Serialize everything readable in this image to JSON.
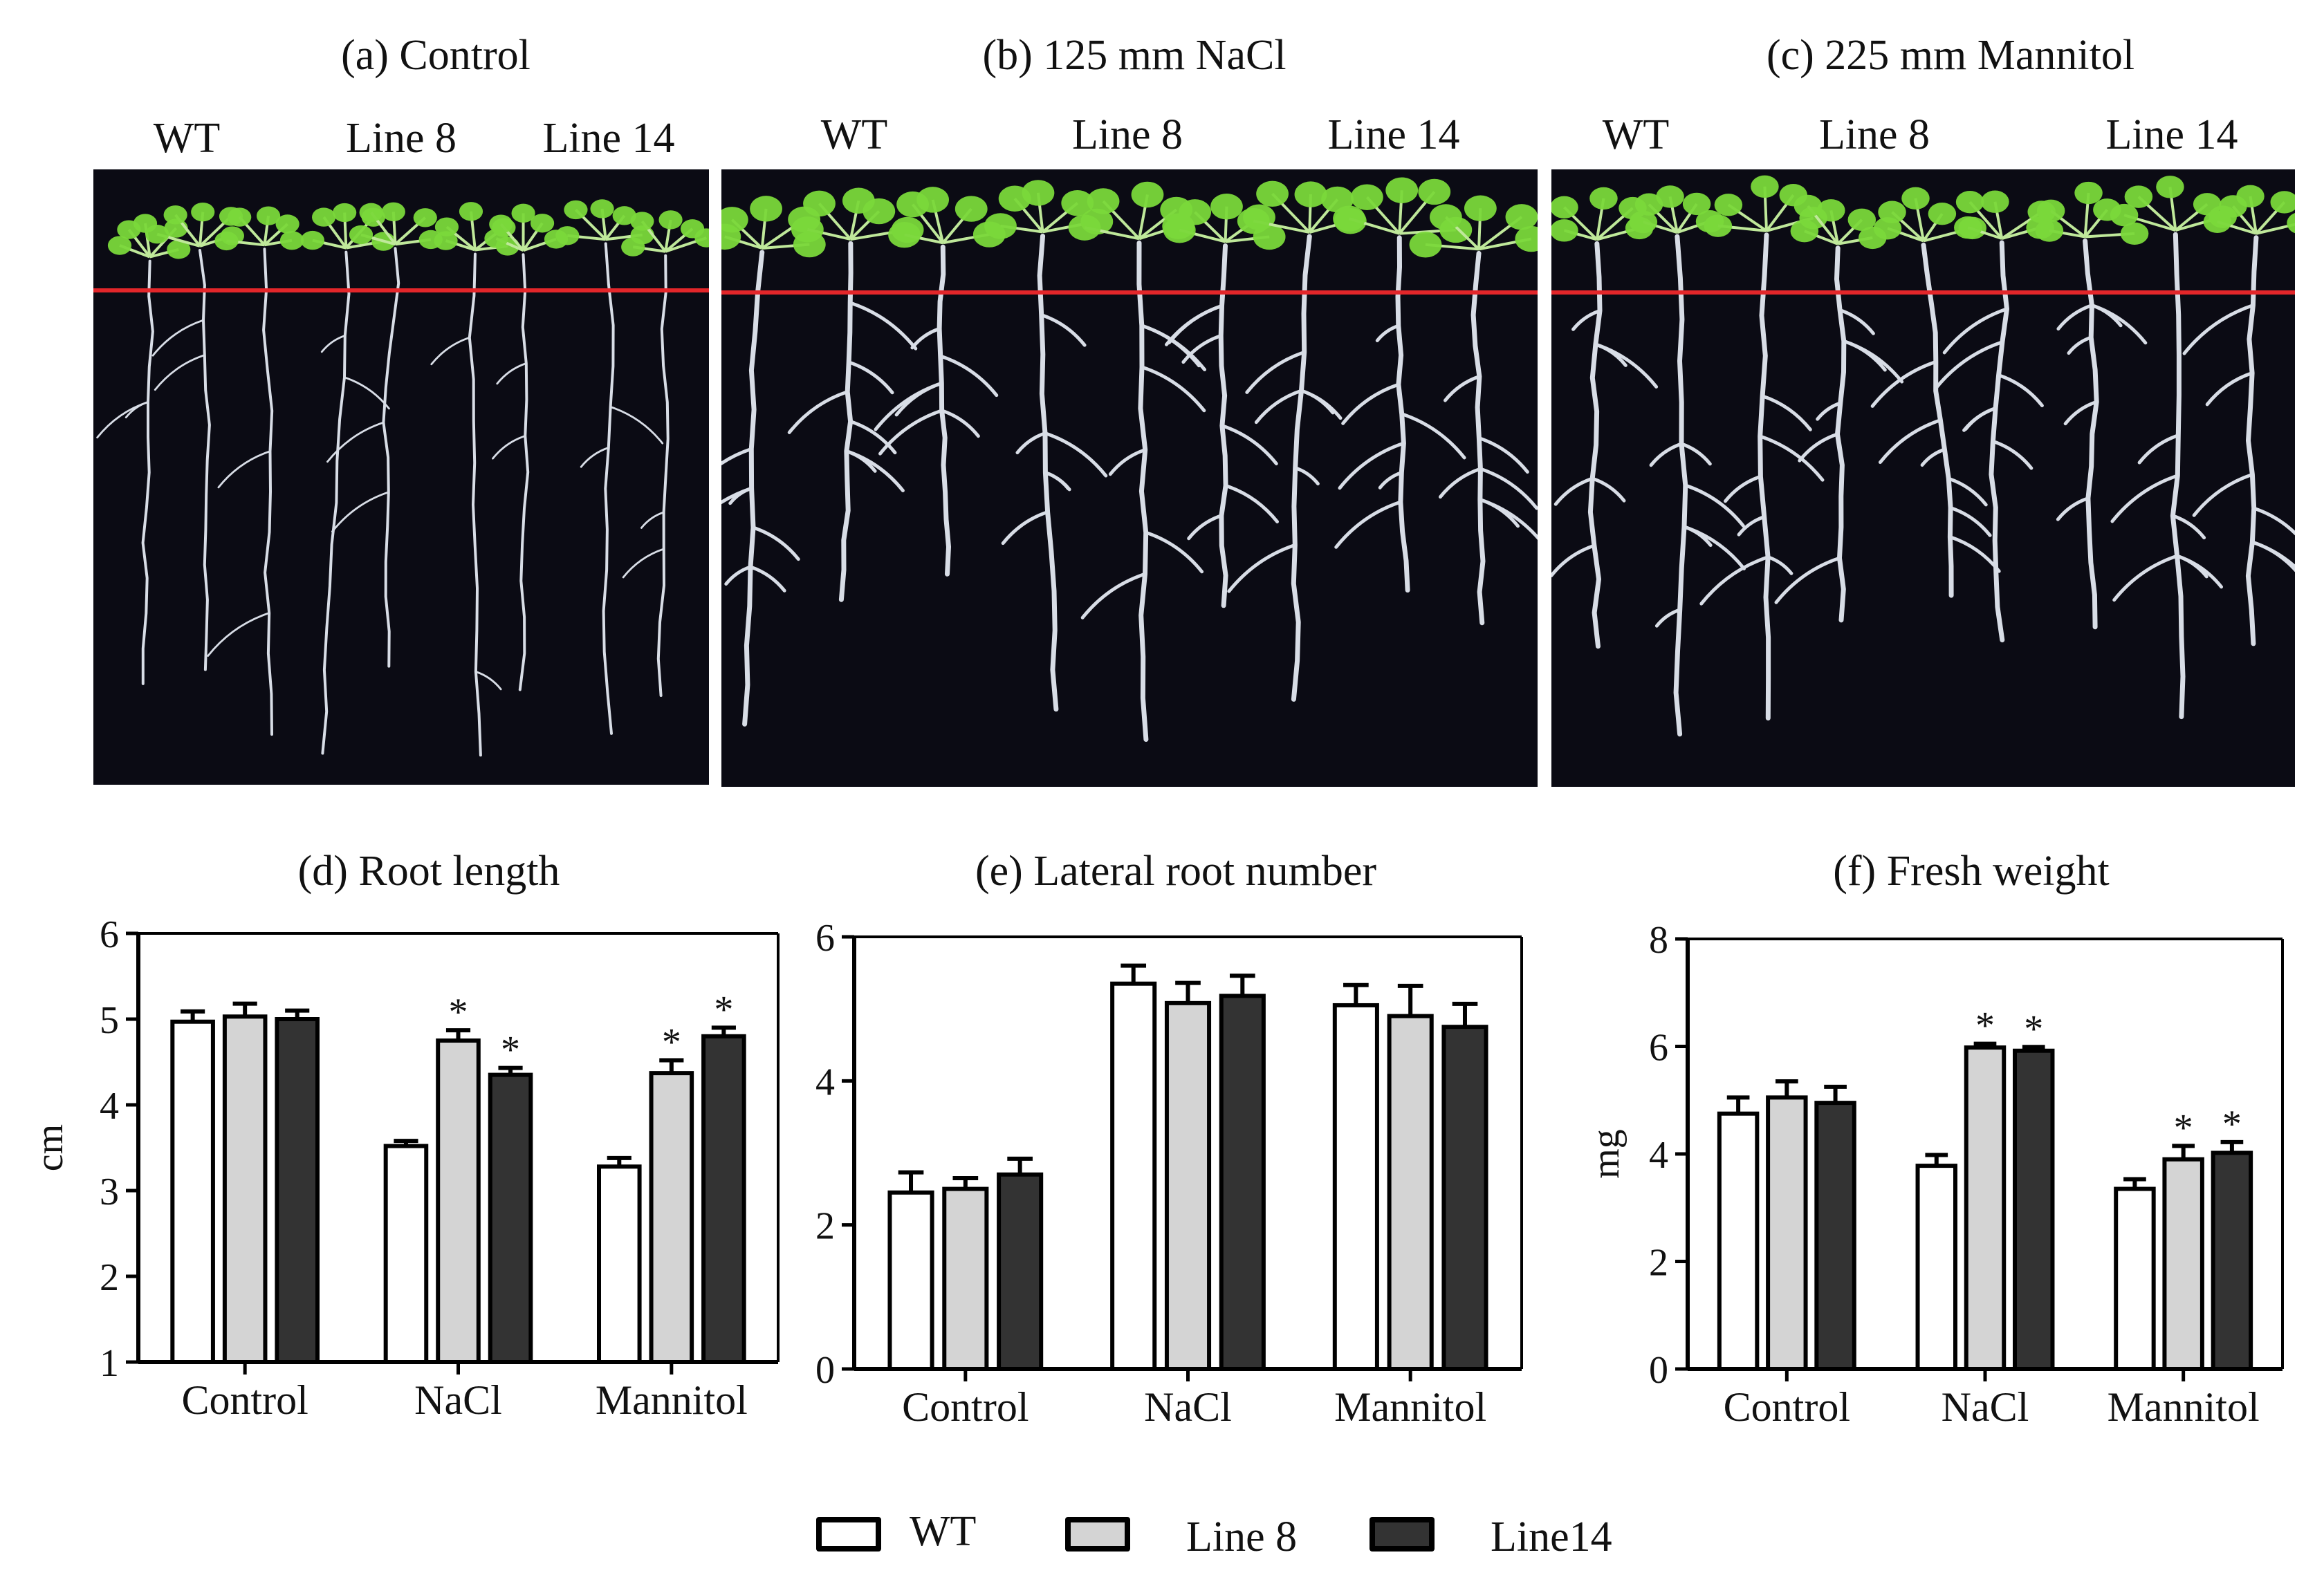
{
  "photos": [
    {
      "title": "(a) Control",
      "labels": [
        "WT",
        "Line 8",
        "Line 14"
      ],
      "roots": "long"
    },
    {
      "title": "(b) 125 mm NaCl",
      "labels": [
        "WT",
        "Line 8",
        "Line 14"
      ],
      "roots": "branched"
    },
    {
      "title": "(c) 225 mm Mannitol",
      "labels": [
        "WT",
        "Line 8",
        "Line 14"
      ],
      "roots": "branched"
    }
  ],
  "colors": {
    "WT": "#ffffff",
    "Line 8": "#d4d4d4",
    "Line14": "#333333",
    "axis": "#000000",
    "marker_line": "#e3262a",
    "leaf": "#7ad83a",
    "root": "#d8dde6"
  },
  "chart_data": [
    {
      "type": "bar",
      "title": "(d) Root length",
      "ylabel": "cm",
      "ylim": [
        1,
        6
      ],
      "yticks": [
        1,
        2,
        3,
        4,
        5,
        6
      ],
      "categories": [
        "Control",
        "NaCl",
        "Mannitol"
      ],
      "series": [
        {
          "name": "WT",
          "values": [
            4.97,
            3.52,
            3.28
          ],
          "errors": [
            0.12,
            0.06,
            0.1
          ],
          "stars": [
            false,
            false,
            false
          ]
        },
        {
          "name": "Line 8",
          "values": [
            5.03,
            4.75,
            4.37
          ],
          "errors": [
            0.15,
            0.12,
            0.15
          ],
          "stars": [
            false,
            true,
            true
          ]
        },
        {
          "name": "Line14",
          "values": [
            5.0,
            4.35,
            4.8
          ],
          "errors": [
            0.1,
            0.08,
            0.1
          ],
          "stars": [
            false,
            true,
            true
          ]
        }
      ]
    },
    {
      "type": "bar",
      "title": "(e) Lateral root number",
      "ylabel": "",
      "ylim": [
        0,
        6
      ],
      "yticks": [
        0,
        2,
        4,
        6
      ],
      "categories": [
        "Control",
        "NaCl",
        "Mannitol"
      ],
      "series": [
        {
          "name": "WT",
          "values": [
            2.45,
            5.35,
            5.05
          ],
          "errors": [
            0.28,
            0.25,
            0.28
          ],
          "stars": [
            false,
            false,
            false
          ]
        },
        {
          "name": "Line 8",
          "values": [
            2.5,
            5.08,
            4.9
          ],
          "errors": [
            0.15,
            0.28,
            0.42
          ],
          "stars": [
            false,
            false,
            false
          ]
        },
        {
          "name": "Line14",
          "values": [
            2.7,
            5.18,
            4.75
          ],
          "errors": [
            0.22,
            0.28,
            0.32
          ],
          "stars": [
            false,
            false,
            false
          ]
        }
      ]
    },
    {
      "type": "bar",
      "title": "(f) Fresh weight",
      "ylabel": "mg",
      "ylim": [
        0,
        8
      ],
      "yticks": [
        0,
        2,
        4,
        6,
        8
      ],
      "categories": [
        "Control",
        "NaCl",
        "Mannitol"
      ],
      "series": [
        {
          "name": "WT",
          "values": [
            4.75,
            3.78,
            3.35
          ],
          "errors": [
            0.3,
            0.2,
            0.18
          ],
          "stars": [
            false,
            false,
            false
          ]
        },
        {
          "name": "Line 8",
          "values": [
            5.05,
            5.98,
            3.9
          ],
          "errors": [
            0.3,
            0.07,
            0.25
          ],
          "stars": [
            false,
            true,
            true
          ]
        },
        {
          "name": "Line14",
          "values": [
            4.95,
            5.92,
            4.02
          ],
          "errors": [
            0.3,
            0.07,
            0.2
          ],
          "stars": [
            false,
            true,
            true
          ]
        }
      ]
    }
  ],
  "legend": [
    {
      "label": "WT"
    },
    {
      "label": "Line 8"
    },
    {
      "label": "Line14"
    }
  ]
}
